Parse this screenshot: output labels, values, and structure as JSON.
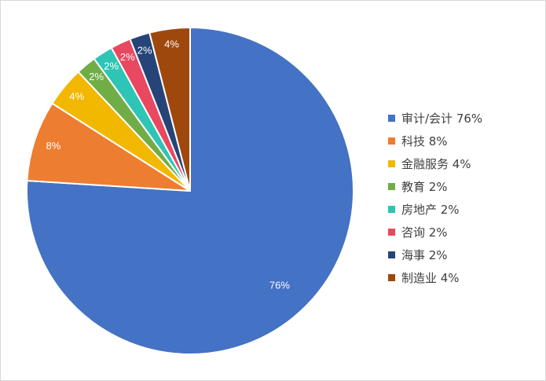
{
  "chart_data": {
    "type": "pie",
    "start_angle_deg": 0,
    "direction": "clockwise",
    "data_labels": "inside",
    "legend_position": "right",
    "slices": [
      {
        "category": "审计/会计",
        "value": 76,
        "label": "76%",
        "legend": "审计/会计 76%",
        "color": "#4472C4"
      },
      {
        "category": "科技",
        "value": 8,
        "label": "8%",
        "legend": "科技 8%",
        "color": "#ED7D31"
      },
      {
        "category": "金融服务",
        "value": 4,
        "label": "4%",
        "legend": "金融服务 4%",
        "color": "#F2B800"
      },
      {
        "category": "教育",
        "value": 2,
        "label": "2%",
        "legend": "教育 2%",
        "color": "#70AD47"
      },
      {
        "category": "房地产",
        "value": 2,
        "label": "2%",
        "legend": "房地产 2%",
        "color": "#2EC4B6"
      },
      {
        "category": "咨询",
        "value": 2,
        "label": "2%",
        "legend": "咨询 2%",
        "color": "#E84860"
      },
      {
        "category": "海事",
        "value": 2,
        "label": "2%",
        "legend": "海事 2%",
        "color": "#264478"
      },
      {
        "category": "制造业",
        "value": 4,
        "label": "4%",
        "legend": "制造业 4%",
        "color": "#9E480E"
      }
    ]
  }
}
